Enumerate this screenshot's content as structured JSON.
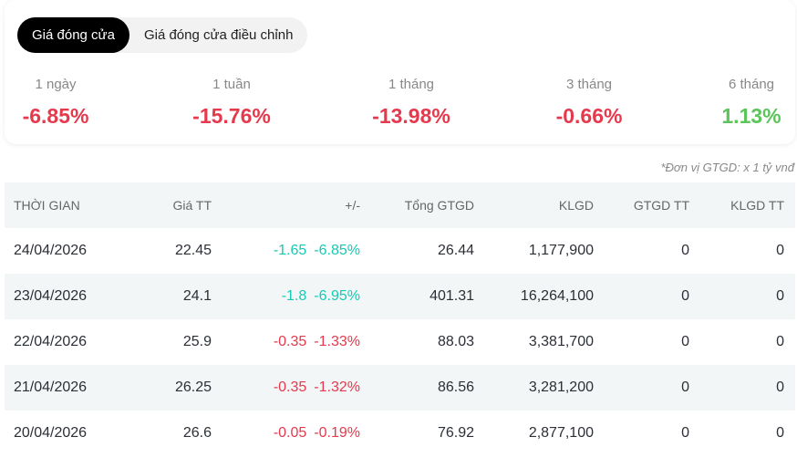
{
  "tabs": [
    "Giá đóng cửa",
    "Giá đóng cửa điều chỉnh"
  ],
  "active_tab": 0,
  "periods": [
    {
      "label": "1 ngày",
      "value": "-6.85%",
      "color": "#e5394d"
    },
    {
      "label": "1 tuần",
      "value": "-15.76%",
      "color": "#e5394d"
    },
    {
      "label": "1 tháng",
      "value": "-13.98%",
      "color": "#e5394d"
    },
    {
      "label": "3 tháng",
      "value": "-0.66%",
      "color": "#e5394d"
    },
    {
      "label": "6 tháng",
      "value": "1.13%",
      "color": "#5cc45a"
    }
  ],
  "note": "*Đơn vị GTGD: x 1 tỷ vnđ",
  "table": {
    "headers": [
      "THỜI GIAN",
      "Giá TT",
      "+/-",
      "Tổng GTGD",
      "KLGD",
      "GTGD TT",
      "KLGD TT"
    ],
    "rows": [
      [
        "24/04/2026",
        "22.45",
        [
          "-1.65",
          "-6.85%"
        ],
        "26.44",
        "1,177,900",
        "0",
        "0"
      ],
      [
        "23/04/2026",
        "24.1",
        [
          "-1.8",
          "-6.95%"
        ],
        "401.31",
        "16,264,100",
        "0",
        "0"
      ],
      [
        "22/04/2026",
        "25.9",
        [
          "-0.35",
          "-1.33%"
        ],
        "88.03",
        "3,381,700",
        "0",
        "0"
      ],
      [
        "21/04/2026",
        "26.25",
        [
          "-0.35",
          "-1.32%"
        ],
        "86.56",
        "3,281,200",
        "0",
        "0"
      ],
      [
        "20/04/2026",
        "26.6",
        [
          "-0.05",
          "-0.19%"
        ],
        "76.92",
        "2,877,100",
        "0",
        "0"
      ]
    ],
    "change_colors": [
      "#17c9b3",
      "#17c9b3",
      "#e5394d",
      "#e5394d",
      "#e5394d"
    ]
  }
}
